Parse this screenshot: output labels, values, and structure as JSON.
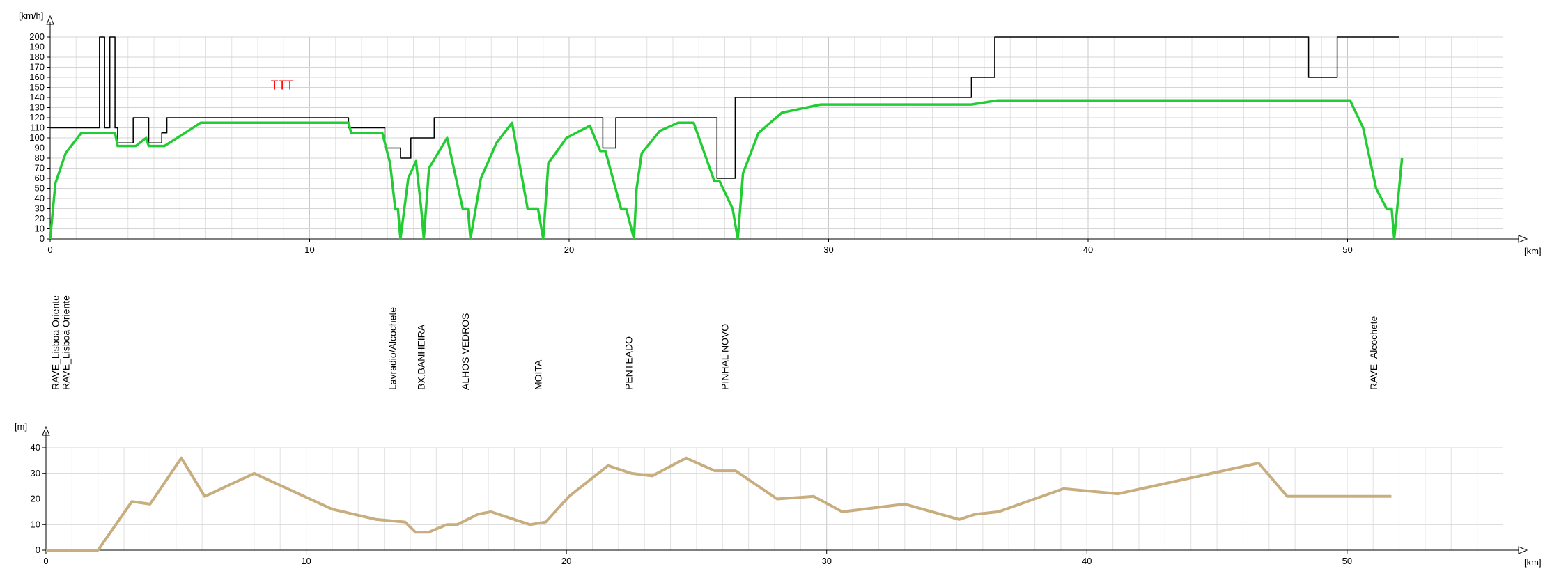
{
  "chart_data": [
    {
      "type": "line",
      "ylabel": "[km/h]",
      "xlabel": "[km]",
      "xlim": [
        0,
        56
      ],
      "ylim": [
        0,
        200
      ],
      "x_ticks": [
        0,
        10,
        20,
        30,
        40,
        50
      ],
      "y_ticks": [
        0,
        10,
        20,
        30,
        40,
        50,
        60,
        70,
        80,
        90,
        100,
        110,
        120,
        130,
        140,
        150,
        160,
        170,
        180,
        190,
        200
      ],
      "grid": true,
      "annotations": [
        {
          "text": "TTT",
          "x": 8.5,
          "y": 148,
          "color": "#ff0000"
        }
      ],
      "series": [
        {
          "color": "#000000",
          "x": [
            0,
            1.9,
            1.9,
            2.1,
            2.1,
            2.3,
            2.3,
            2.5,
            2.5,
            2.6,
            2.6,
            3.2,
            3.2,
            3.8,
            3.8,
            4.3,
            4.3,
            4.5,
            4.5,
            4.6,
            4.6,
            11.5,
            11.5,
            12.9,
            12.9,
            13.5,
            13.5,
            13.9,
            13.9,
            14.8,
            14.8,
            21.3,
            21.3,
            21.8,
            21.8,
            25.7,
            25.7,
            26.4,
            26.4,
            35.5,
            35.5,
            36.4,
            36.4,
            48.5,
            48.5,
            49.6,
            49.6,
            52
          ],
          "y": [
            110,
            110,
            200,
            200,
            110,
            110,
            200,
            200,
            110,
            110,
            95,
            95,
            120,
            120,
            95,
            95,
            105,
            105,
            120,
            120,
            120,
            120,
            110,
            110,
            90,
            90,
            80,
            80,
            100,
            100,
            120,
            120,
            90,
            90,
            120,
            120,
            60,
            60,
            140,
            140,
            160,
            160,
            200,
            200,
            160,
            160,
            200,
            200
          ]
        },
        {
          "color": "#22cc33",
          "x": [
            0,
            0.2,
            0.6,
            1.2,
            2.5,
            2.6,
            3.3,
            3.7,
            3.8,
            4.4,
            4.9,
            5.8,
            11.5,
            11.6,
            12.8,
            13.1,
            13.3,
            13.4,
            13.5,
            13.8,
            14.1,
            14.3,
            14.4,
            14.6,
            15.3,
            15.9,
            16.1,
            16.2,
            16.6,
            17.2,
            17.8,
            18.4,
            18.8,
            19.0,
            19.2,
            19.9,
            20.8,
            21.2,
            21.4,
            22.0,
            22.2,
            22.5,
            22.6,
            22.8,
            23.5,
            24.2,
            24.8,
            25.6,
            25.8,
            26.3,
            26.5,
            26.7,
            27.3,
            28.2,
            29.7,
            35.5,
            36.5,
            50.1,
            50.6,
            51.1,
            51.5,
            51.7,
            51.8,
            52.1
          ],
          "y": [
            0,
            55,
            85,
            105,
            105,
            92,
            92,
            100,
            92,
            92,
            100,
            115,
            115,
            105,
            105,
            75,
            30,
            30,
            0,
            60,
            77,
            30,
            0,
            70,
            100,
            30,
            30,
            0,
            60,
            95,
            115,
            30,
            30,
            0,
            75,
            100,
            112,
            87,
            87,
            30,
            30,
            0,
            50,
            85,
            107,
            115,
            115,
            57,
            57,
            30,
            0,
            65,
            105,
            125,
            133,
            133,
            137,
            137,
            110,
            50,
            30,
            30,
            0,
            80
          ]
        }
      ]
    },
    {
      "type": "line",
      "ylabel": "[m]",
      "xlabel": "[km]",
      "xlim": [
        0,
        56
      ],
      "ylim": [
        0,
        40
      ],
      "x_ticks": [
        0,
        10,
        20,
        30,
        40,
        50
      ],
      "y_ticks": [
        0,
        10,
        20,
        30,
        40
      ],
      "grid": true,
      "series": [
        {
          "color": "#c8ad7f",
          "x": [
            0,
            2,
            3.3,
            4,
            5.2,
            6.1,
            8,
            11,
            12.7,
            13.8,
            14.2,
            14.7,
            15.4,
            15.8,
            16.6,
            17.1,
            18.6,
            19.2,
            20.1,
            21.6,
            22.5,
            23.3,
            24.6,
            25.7,
            26.5,
            28.1,
            29.5,
            30.6,
            33,
            35.1,
            35.7,
            36.6,
            39.1,
            41.2,
            46.6,
            47.7,
            51.7
          ],
          "y": [
            0,
            0,
            19,
            18,
            36,
            21,
            30,
            16,
            12,
            11,
            7,
            7,
            10,
            10,
            14,
            15,
            10,
            11,
            21,
            33,
            30,
            29,
            36,
            31,
            31,
            20,
            21,
            15,
            18,
            12,
            14,
            15,
            24,
            22,
            34,
            21,
            21
          ]
        }
      ]
    }
  ],
  "stations": [
    {
      "label": "RAVE_Lisboa Oriente",
      "km": 0.2
    },
    {
      "label": "RAVE_Lisboa Oriente",
      "km": 0.6
    },
    {
      "label": "Lavradio/Alcochete",
      "km": 13.2
    },
    {
      "label": "BX.BANHEIRA",
      "km": 14.3
    },
    {
      "label": "ALHOS VEDROS",
      "km": 16.0
    },
    {
      "label": "MOITA",
      "km": 18.8
    },
    {
      "label": "PENTEADO",
      "km": 22.3
    },
    {
      "label": "PINHAL NOVO",
      "km": 26.0
    },
    {
      "label": "RAVE_Alcochete",
      "km": 51.0
    }
  ]
}
